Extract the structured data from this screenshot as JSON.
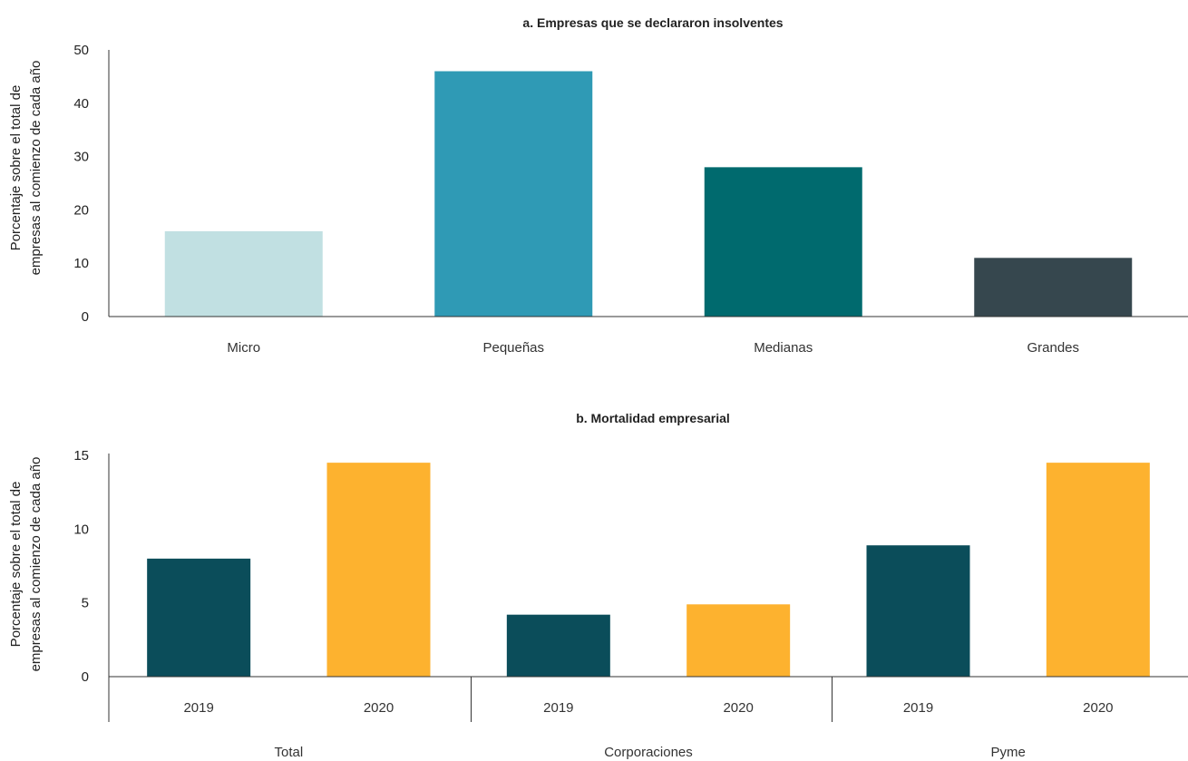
{
  "chart_data": [
    {
      "type": "bar",
      "title": "a. Empresas que se declararon insolventes",
      "ylabel_lines": [
        "Porcentaje sobre el total de",
        "empresas al comienzo de cada año"
      ],
      "categories": [
        "Micro",
        "Pequeñas",
        "Medianas",
        "Grandes"
      ],
      "values": [
        16,
        46,
        28,
        11
      ],
      "colors": [
        "#c1e0e2",
        "#2f9ab5",
        "#006a6e",
        "#36474e"
      ],
      "ylim": [
        0,
        50
      ],
      "yticks": [
        0,
        10,
        20,
        30,
        40,
        50
      ],
      "grid": false
    },
    {
      "type": "bar",
      "title": "b. Mortalidad empresarial",
      "ylabel_lines": [
        "Porcentaje sobre el total de",
        "empresas al comienzo de cada año"
      ],
      "groups": [
        {
          "name": "Total",
          "bars": [
            {
              "label": "2019",
              "value": 8
            },
            {
              "label": "2020",
              "value": 14.5
            }
          ]
        },
        {
          "name": "Corporaciones",
          "bars": [
            {
              "label": "2019",
              "value": 4.2
            },
            {
              "label": "2020",
              "value": 4.9
            }
          ]
        },
        {
          "name": "Pyme",
          "bars": [
            {
              "label": "2019",
              "value": 8.9
            },
            {
              "label": "2020",
              "value": 14.5
            }
          ]
        }
      ],
      "colors": {
        "2019": "#0b4d5a",
        "2020": "#fdb22f"
      },
      "ylim": [
        0,
        15
      ],
      "yticks": [
        0,
        5,
        10,
        15
      ],
      "grid": false
    }
  ]
}
